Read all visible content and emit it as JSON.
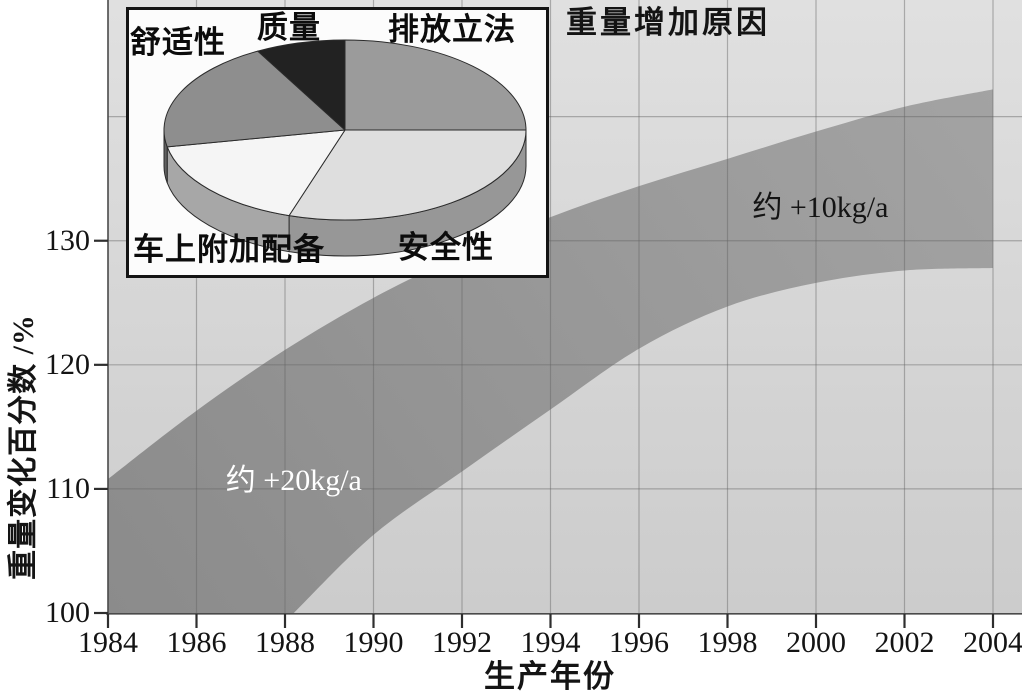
{
  "colors": {
    "plot_bg_top": "#e0e0e0",
    "plot_bg_bottom": "#cccccc",
    "band_dark": "#8b8b8b",
    "band_light": "#a4a4a4",
    "grid": "rgba(100,100,100,0.45)",
    "axis": "#4a4a4a",
    "tick": "#2e2e2e",
    "text": "#141414"
  },
  "chart_data": [
    {
      "type": "area",
      "title": "重量增加原因",
      "xlabel": "生产年份",
      "ylabel": "重量变化百分数 /%",
      "xlim": [
        1984,
        2004
      ],
      "ylim": [
        100,
        149.4
      ],
      "x_ticks": [
        1984,
        1986,
        1988,
        1990,
        1992,
        1994,
        1996,
        1998,
        2000,
        2002,
        2004
      ],
      "y_ticks": [
        100,
        110,
        120,
        130
      ],
      "y_gridlines": [
        110,
        120,
        130,
        140
      ],
      "grid": true,
      "x": [
        1984,
        1986,
        1988,
        1990,
        1992,
        1994,
        1996,
        1998,
        2000,
        2002,
        2004
      ],
      "band_upper": [
        110.8,
        116.3,
        121.2,
        125.4,
        128.9,
        131.9,
        134.4,
        136.6,
        138.8,
        140.8,
        142.2
      ],
      "band_lower": [
        100,
        100,
        100,
        106.3,
        111.4,
        116.4,
        121.3,
        124.7,
        126.6,
        127.6,
        127.8
      ],
      "band_lower_curve": [
        [
          1988.2,
          100
        ],
        [
          1990,
          106.3
        ],
        [
          1992,
          111.4
        ],
        [
          1994,
          116.4
        ],
        [
          1996,
          121.3
        ],
        [
          1998,
          124.7
        ],
        [
          2000,
          126.6
        ],
        [
          2002,
          127.6
        ],
        [
          2004,
          127.8
        ]
      ],
      "annotations": [
        {
          "text": "重量增加原因",
          "role": "title"
        },
        {
          "text": "约 +20kg/a",
          "x": 1988.2,
          "y": 110.6,
          "color": "#ffffff"
        },
        {
          "text": "约 +10kg/a",
          "x": 2000.1,
          "y": 132.6,
          "color": "#141414"
        }
      ]
    },
    {
      "type": "pie",
      "style": "3d",
      "title": "重量增加原因",
      "labels": [
        "排放立法",
        "安全性",
        "车上附加配备",
        "舒适性",
        "质量"
      ],
      "values": [
        25,
        30,
        17,
        20,
        8
      ],
      "unit": "percent",
      "start_angle": "12-oclock-clockwise",
      "colors": [
        "#9b9b9b",
        "#dedede",
        "#f5f5f5",
        "#8e8e8e",
        "#222222"
      ],
      "legend_position": "around-slices"
    }
  ]
}
